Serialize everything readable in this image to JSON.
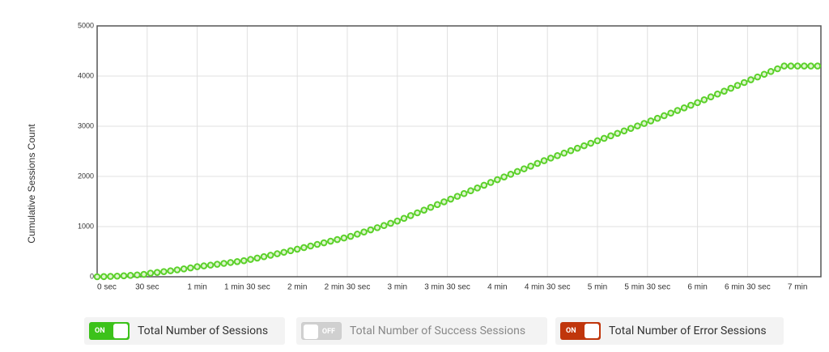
{
  "chart_data": {
    "type": "line",
    "y_label": "Cumulative Sessions Count",
    "x": [
      0,
      4,
      8,
      12,
      16,
      20,
      24,
      28,
      32,
      36,
      40,
      44,
      48,
      52,
      56,
      60,
      64,
      68,
      72,
      76,
      80,
      84,
      88,
      92,
      96,
      100,
      104,
      108,
      112,
      116,
      120,
      124,
      128,
      132,
      136,
      140,
      144,
      148,
      152,
      156,
      160,
      164,
      168,
      172,
      176,
      180,
      184,
      188,
      192,
      196,
      200,
      204,
      208,
      212,
      216,
      220,
      224,
      228,
      232,
      236,
      240,
      244,
      248,
      252,
      256,
      260,
      264,
      268,
      272,
      276,
      280,
      284,
      288,
      292,
      296,
      300,
      304,
      308,
      312,
      316,
      320,
      324,
      328,
      332,
      336,
      340,
      344,
      348,
      352,
      356,
      360,
      364,
      368,
      372,
      376,
      380,
      384,
      388,
      392,
      396,
      400,
      404,
      408,
      412,
      416,
      420,
      424,
      428,
      432
    ],
    "series": [
      {
        "name": "Total Number of Sessions",
        "color": "#5cd12b",
        "values": [
          0,
          3,
          7,
          12,
          19,
          27,
          36,
          47,
          72,
          86,
          102,
          119,
          137,
          156,
          177,
          200,
          216,
          232,
          249,
          266,
          284,
          302,
          320,
          345,
          372,
          400,
          429,
          458,
          488,
          519,
          550,
          581,
          613,
          645,
          677,
          709,
          741,
          773,
          806,
          849,
          892,
          935,
          978,
          1021,
          1065,
          1110,
          1164,
          1219,
          1274,
          1328,
          1383,
          1438,
          1493,
          1548,
          1603,
          1658,
          1714,
          1769,
          1824,
          1880,
          1935,
          1989,
          2043,
          2097,
          2151,
          2205,
          2259,
          2313,
          2365,
          2414,
          2464,
          2513,
          2562,
          2611,
          2661,
          2710,
          2759,
          2809,
          2858,
          2907,
          2957,
          3006,
          3055,
          3106,
          3158,
          3210,
          3262,
          3314,
          3366,
          3418,
          3470,
          3527,
          3585,
          3642,
          3699,
          3757,
          3814,
          3871,
          3927,
          3982,
          4036,
          4091,
          4145,
          4200,
          4200,
          4200,
          4200,
          4200,
          4200
        ]
      }
    ],
    "xlim": [
      0,
      434
    ],
    "xticks": [
      {
        "value": 0,
        "label": "0 sec"
      },
      {
        "value": 30,
        "label": "30 sec"
      },
      {
        "value": 60,
        "label": "1 min"
      },
      {
        "value": 90,
        "label": "1 min 30 sec"
      },
      {
        "value": 120,
        "label": "2 min"
      },
      {
        "value": 150,
        "label": "2 min 30 sec"
      },
      {
        "value": 180,
        "label": "3 min"
      },
      {
        "value": 210,
        "label": "3 min 30 sec"
      },
      {
        "value": 240,
        "label": "4 min"
      },
      {
        "value": 270,
        "label": "4 min 30 sec"
      },
      {
        "value": 300,
        "label": "5 min"
      },
      {
        "value": 330,
        "label": "5 min 30 sec"
      },
      {
        "value": 360,
        "label": "6 min"
      },
      {
        "value": 390,
        "label": "6 min 30 sec"
      },
      {
        "value": 420,
        "label": "7 min"
      }
    ],
    "ylim": [
      0,
      5000
    ],
    "yticks": [
      0,
      1000,
      2000,
      3000,
      4000,
      5000
    ],
    "grid": true,
    "toggles": [
      {
        "label": "Total Number of Sessions",
        "state": "ON",
        "color": "#3cc21a"
      },
      {
        "label": "Total Number of Success Sessions",
        "state": "OFF",
        "color": "#d0d0d0"
      },
      {
        "label": "Total Number of Error Sessions",
        "state": "ON",
        "color": "#c0360c"
      }
    ]
  }
}
